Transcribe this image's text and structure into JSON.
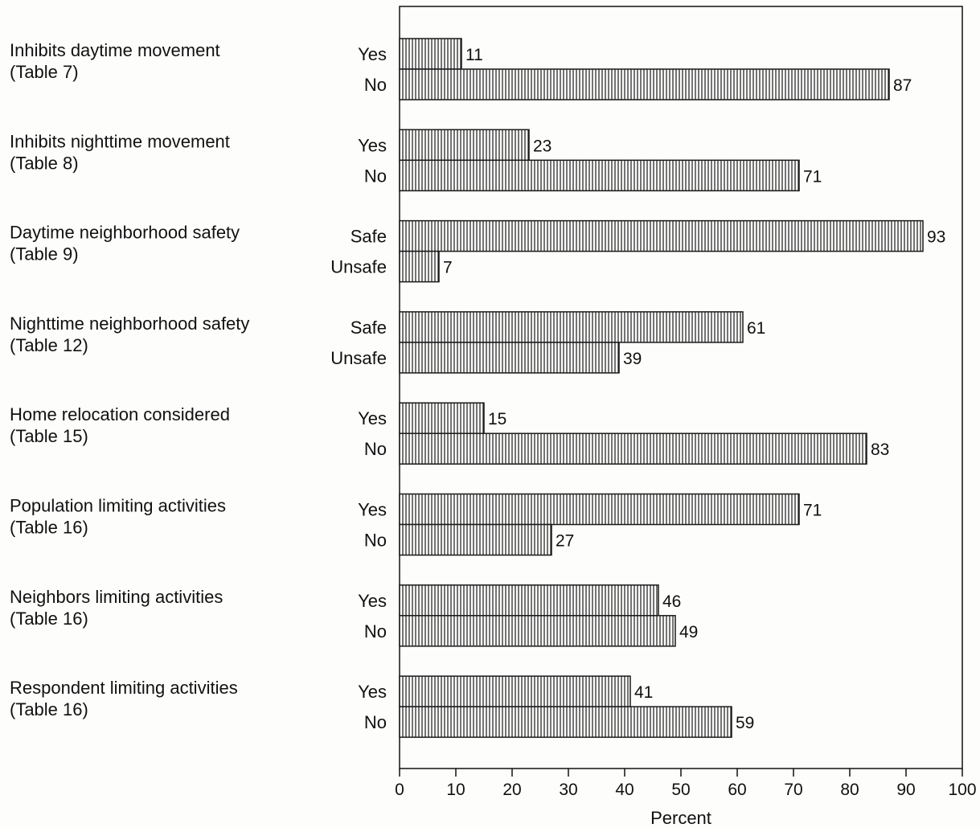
{
  "chart_data": {
    "type": "bar",
    "orientation": "horizontal",
    "xlabel": "Percent",
    "xlim": [
      0,
      100
    ],
    "xticks": [
      0,
      10,
      20,
      30,
      40,
      50,
      60,
      70,
      80,
      90,
      100
    ],
    "grid": false,
    "bar_fill": "vertical-hatch",
    "bar_color": "#1a1a1a",
    "groups": [
      {
        "title": "Inhibits daytime movement",
        "source": "(Table 7)",
        "bars": [
          {
            "label": "Yes",
            "value": 11
          },
          {
            "label": "No",
            "value": 87
          }
        ]
      },
      {
        "title": "Inhibits nighttime movement",
        "source": "(Table 8)",
        "bars": [
          {
            "label": "Yes",
            "value": 23
          },
          {
            "label": "No",
            "value": 71
          }
        ]
      },
      {
        "title": "Daytime neighborhood safety",
        "source": "(Table 9)",
        "bars": [
          {
            "label": "Safe",
            "value": 93
          },
          {
            "label": "Unsafe",
            "value": 7
          }
        ]
      },
      {
        "title": "Nighttime neighborhood safety",
        "source": "(Table 12)",
        "bars": [
          {
            "label": "Safe",
            "value": 61
          },
          {
            "label": "Unsafe",
            "value": 39
          }
        ]
      },
      {
        "title": "Home relocation considered",
        "source": "(Table 15)",
        "bars": [
          {
            "label": "Yes",
            "value": 15
          },
          {
            "label": "No",
            "value": 83
          }
        ]
      },
      {
        "title": "Population limiting activities",
        "source": "(Table 16)",
        "bars": [
          {
            "label": "Yes",
            "value": 71
          },
          {
            "label": "No",
            "value": 27
          }
        ]
      },
      {
        "title": "Neighbors limiting activities",
        "source": "(Table 16)",
        "bars": [
          {
            "label": "Yes",
            "value": 46
          },
          {
            "label": "No",
            "value": 49
          }
        ]
      },
      {
        "title": "Respondent limiting activities",
        "source": "(Table 16)",
        "bars": [
          {
            "label": "Yes",
            "value": 41
          },
          {
            "label": "No",
            "value": 59
          }
        ]
      }
    ]
  }
}
